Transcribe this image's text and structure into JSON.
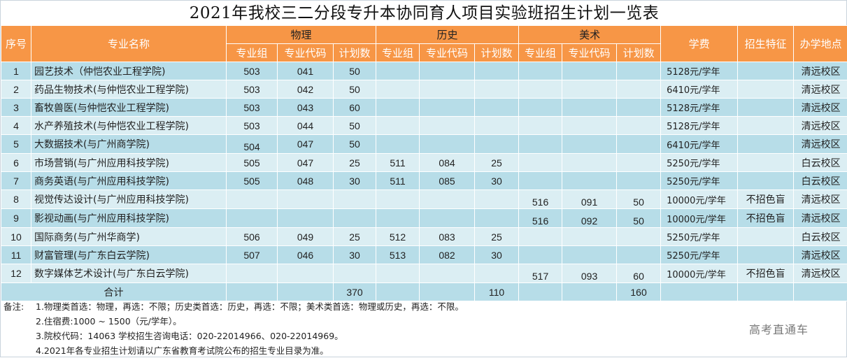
{
  "title": "2021年我校三二分段专升本协同育人项目实验班招生计划一览表",
  "header": {
    "seq": "序号",
    "major": "专业名称",
    "groups": [
      "物理",
      "历史",
      "美术"
    ],
    "sub": [
      "专业组",
      "专业代码",
      "计划数"
    ],
    "fee": "学费",
    "feature": "招生特征",
    "location": "办学地点"
  },
  "rows": [
    {
      "seq": "1",
      "major": "园艺技术（仲恺农业工程学院)",
      "phy": [
        "503",
        "041",
        "50"
      ],
      "his": [
        "",
        "",
        ""
      ],
      "art": [
        "",
        "",
        ""
      ],
      "fee": "5128元/学年",
      "feature": "",
      "location": "清远校区"
    },
    {
      "seq": "2",
      "major": "药品生物技术(与仲恺农业工程学院)",
      "phy": [
        "503",
        "042",
        "50"
      ],
      "his": [
        "",
        "",
        ""
      ],
      "art": [
        "",
        "",
        ""
      ],
      "fee": "6410元/学年",
      "feature": "",
      "location": "清远校区"
    },
    {
      "seq": "3",
      "major": "畜牧兽医(与仲恺农业工程学院)",
      "phy": [
        "503",
        "043",
        "60"
      ],
      "his": [
        "",
        "",
        ""
      ],
      "art": [
        "",
        "",
        ""
      ],
      "fee": "5128元/学年",
      "feature": "",
      "location": "清远校区"
    },
    {
      "seq": "4",
      "major": "水产养殖技术(与仲恺农业工程学院)",
      "phy": [
        "503",
        "044",
        "50"
      ],
      "his": [
        "",
        "",
        ""
      ],
      "art": [
        "",
        "",
        ""
      ],
      "fee": "5128元/学年",
      "feature": "",
      "location": "清远校区"
    },
    {
      "seq": "5",
      "major": "大数据技术(与广州商学院)",
      "phy": [
        "504",
        "047",
        "50"
      ],
      "his": [
        "",
        "",
        ""
      ],
      "art": [
        "",
        "",
        ""
      ],
      "fee": "6410元/学年",
      "feature": "",
      "location": "清远校区"
    },
    {
      "seq": "6",
      "major": "市场营销(与广州应用科技学院)",
      "phy": [
        "505",
        "047",
        "25"
      ],
      "his": [
        "511",
        "084",
        "25"
      ],
      "art": [
        "",
        "",
        ""
      ],
      "fee": "5250元/学年",
      "feature": "",
      "location": "白云校区"
    },
    {
      "seq": "7",
      "major": "商务英语(与广州应用科技学院)",
      "phy": [
        "505",
        "048",
        "30"
      ],
      "his": [
        "511",
        "085",
        "30"
      ],
      "art": [
        "",
        "",
        ""
      ],
      "fee": "5250元/学年",
      "feature": "",
      "location": "白云校区"
    },
    {
      "seq": "8",
      "major": "视觉传达设计(与广州应用科技学院)",
      "phy": [
        "",
        "",
        ""
      ],
      "his": [
        "",
        "",
        ""
      ],
      "art": [
        "516",
        "091",
        "50"
      ],
      "fee": "10000元/学年",
      "feature": "不招色盲",
      "location": "清远校区"
    },
    {
      "seq": "9",
      "major": "影视动画(与广州应用科技学院)",
      "phy": [
        "",
        "",
        ""
      ],
      "his": [
        "",
        "",
        ""
      ],
      "art": [
        "516",
        "092",
        "50"
      ],
      "fee": "10000元/学年",
      "feature": "不招色盲",
      "location": "清远校区"
    },
    {
      "seq": "10",
      "major": "国际商务(与广州华商学)",
      "phy": [
        "506",
        "049",
        "25"
      ],
      "his": [
        "512",
        "083",
        "25"
      ],
      "art": [
        "",
        "",
        ""
      ],
      "fee": "5250元/学年",
      "feature": "",
      "location": "白云校区"
    },
    {
      "seq": "11",
      "major": "财富管理(与广东白云学院)",
      "phy": [
        "507",
        "046",
        "30"
      ],
      "his": [
        "513",
        "082",
        "30"
      ],
      "art": [
        "",
        "",
        ""
      ],
      "fee": "5250元/学年",
      "feature": "",
      "location": "清远校区"
    },
    {
      "seq": "12",
      "major": "数字媒体艺术设计(与广东白云学院)",
      "phy": [
        "",
        "",
        ""
      ],
      "his": [
        "",
        "",
        ""
      ],
      "art": [
        "517",
        "093",
        "60"
      ],
      "fee": "10000元/学年",
      "feature": "不招色盲",
      "location": "清远校区"
    }
  ],
  "total": {
    "label": "合计",
    "phy": "370",
    "his": "110",
    "art": "160"
  },
  "notes": {
    "label": "备注:",
    "lines": [
      "1.物理类首选：物理，再选：不限；历史类首选：历史，再选：不限；美术类首选：物理或历史，再选：不限。",
      "2.住宿费:1000 ~ 1500（元/学年）。",
      "3.院校代码：14063 学校招生咨询电话：020-22014966、020-22014969。",
      "4.2021年各专业招生计划请以广东省教育考试院公布的招生专业目录为准。"
    ]
  },
  "watermark": "高考直通车",
  "colors": {
    "header": "#f79646",
    "row_dark": "#b7dde8",
    "row_light": "#dbeef3"
  }
}
